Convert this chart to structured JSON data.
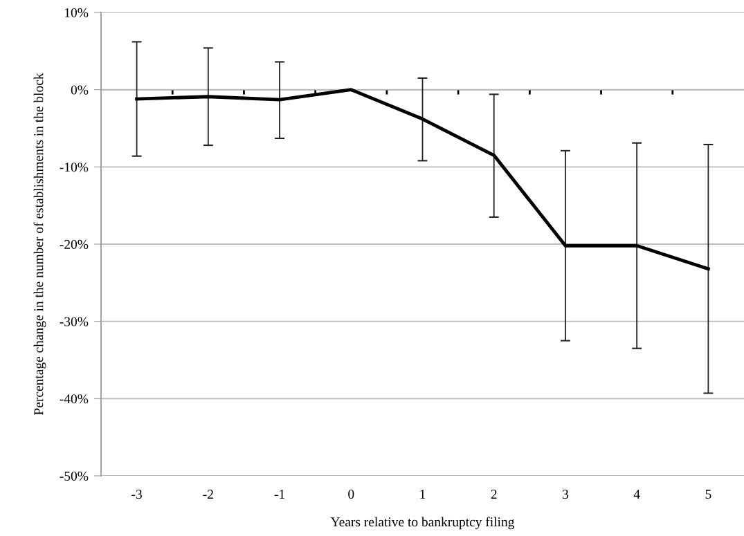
{
  "chart_data": {
    "type": "line",
    "xlabel": "Years relative to bankruptcy filing",
    "ylabel": "Percentage change in the number of establishments in the block",
    "categories": [
      "-3",
      "-2",
      "-1",
      "0",
      "1",
      "2",
      "3",
      "4",
      "5"
    ],
    "series": [
      {
        "color": "#000000",
        "values": [
          -1.2,
          -0.9,
          -1.3,
          0,
          -3.8,
          -8.5,
          -20.2,
          -20.2,
          -23.2
        ],
        "errors": [
          [
            -8.6,
            6.2
          ],
          [
            -7.2,
            5.4
          ],
          [
            -6.3,
            3.6
          ],
          null,
          [
            -9.2,
            1.5
          ],
          [
            -16.5,
            -0.6
          ],
          [
            -32.5,
            -7.9
          ],
          [
            -33.5,
            -6.9
          ],
          [
            -39.3,
            -7.1
          ]
        ]
      }
    ],
    "ylim": [
      -50,
      10
    ],
    "yticks": [
      {
        "value": -50,
        "label": "-50%"
      },
      {
        "value": -40,
        "label": "-40%"
      },
      {
        "value": -30,
        "label": "-30%"
      },
      {
        "value": -20,
        "label": "-20%"
      },
      {
        "value": -10,
        "label": "-10%"
      },
      {
        "value": 0,
        "label": "0%"
      },
      {
        "value": 10,
        "label": "10%"
      }
    ],
    "grid": "y",
    "marker": "none",
    "line_style": "solid"
  }
}
